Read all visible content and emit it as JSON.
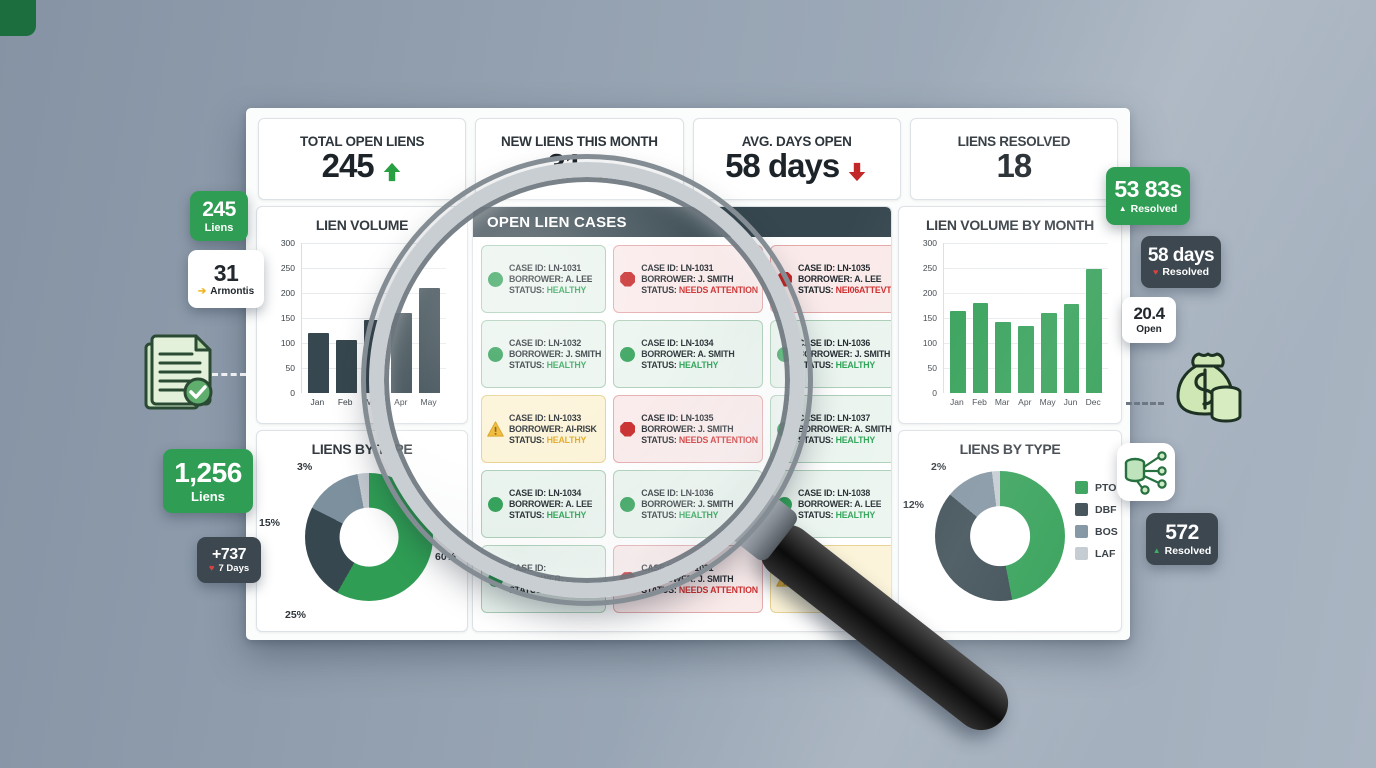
{
  "kpis": [
    {
      "label": "TOTAL OPEN LIENS",
      "value": "245",
      "trend": "up"
    },
    {
      "label": "NEW LIENS THIS MONTH",
      "value": "31",
      "trend": "right"
    },
    {
      "label": "AVG. DAYS OPEN",
      "value": "58 days",
      "trend": "down"
    },
    {
      "label": "LIENS RESOLVED",
      "value": "18",
      "trend": "none"
    }
  ],
  "trend_colors": {
    "up": "#27a042",
    "right": "#f0b41c",
    "down": "#c22828"
  },
  "panels": {
    "lien_volume": {
      "title": "LIEN VOLUME",
      "type": "bar",
      "bar_color": "#37474f",
      "yticks": [
        300,
        250,
        200,
        150,
        100,
        50,
        0
      ],
      "ymax": 300,
      "categories": [
        "Jan",
        "Feb",
        "Mar",
        "Apr",
        "May"
      ],
      "values": [
        120,
        105,
        145,
        160,
        210
      ]
    },
    "lien_volume_by_month": {
      "title": "LIEN VOLUME BY MONTH",
      "type": "bar",
      "bar_color": "#2f9e54",
      "yticks": [
        300,
        250,
        200,
        150,
        100,
        50,
        0
      ],
      "ymax": 300,
      "categories": [
        "Jan",
        "Feb",
        "Mar",
        "Apr",
        "May",
        "Jun",
        "Dec"
      ],
      "values": [
        163,
        180,
        142,
        133,
        160,
        178,
        247
      ]
    },
    "liens_by_type_left": {
      "title": "LIENS BY TYPE",
      "type": "donut",
      "slices": [
        {
          "label": "60%",
          "value": 60,
          "color": "#2f9e54"
        },
        {
          "label": "25%",
          "value": 25,
          "color": "#37474f"
        },
        {
          "label": "15%",
          "value": 15,
          "color": "#7d909e"
        },
        {
          "label": "3%",
          "value": 3,
          "color": "#c2c9cf"
        }
      ]
    },
    "liens_by_type_right": {
      "title": "LIENS BY TYPE",
      "type": "donut",
      "slices": [
        {
          "label": "",
          "value": 47,
          "color": "#2f9e54",
          "name": "PTO"
        },
        {
          "label": "",
          "value": 39,
          "color": "#37474f",
          "name": "DBF"
        },
        {
          "label": "12%",
          "value": 12,
          "color": "#7d909e",
          "name": "BOS"
        },
        {
          "label": "2%",
          "value": 2,
          "color": "#c2c9cf",
          "name": "LAF"
        }
      ],
      "legend": [
        "PTO",
        "DBF",
        "BOS",
        "LAF"
      ]
    }
  },
  "cases": {
    "header": "OPEN LIEN CASES",
    "labels": {
      "case": "CASE ID:",
      "borrower": "BORROWER:",
      "status": "STATUS:"
    },
    "cards": [
      {
        "id": "LN-1031",
        "borrower": "A. LEE",
        "status": "HEALTHY",
        "kind": "healthy"
      },
      {
        "id": "LN-1031",
        "borrower": "J. SMITH",
        "status": "NEEDS ATTENTION",
        "kind": "attention"
      },
      {
        "id": "LN-1035",
        "borrower": "A. LEE",
        "status": "NEI06ATTEVTION",
        "kind": "attention"
      },
      {
        "id": "LN-1032",
        "borrower": "J. SMITH",
        "status": "HEALTHY",
        "kind": "healthy"
      },
      {
        "id": "LN-1034",
        "borrower": "A. SMITH",
        "status": "HEALTHY",
        "kind": "healthy"
      },
      {
        "id": "LN-1036",
        "borrower": "J. SMITH",
        "status": "HEALTHY",
        "kind": "healthy"
      },
      {
        "id": "LN-1033",
        "borrower": "AI-RISK",
        "status": "HEALTHY",
        "kind": "warning"
      },
      {
        "id": "LN-1035",
        "borrower": "J. SMITH",
        "status": "NEEDS ATTENTION",
        "kind": "attention"
      },
      {
        "id": "LN-1037",
        "borrower": "A. SMITH",
        "status": "HEALTHY",
        "kind": "healthy"
      },
      {
        "id": "LN-1034",
        "borrower": "A. LEE",
        "status": "HEALTHY",
        "kind": "healthy"
      },
      {
        "id": "LN-1036",
        "borrower": "J. SMITH",
        "status": "HEALTHY",
        "kind": "healthy"
      },
      {
        "id": "LN-1038",
        "borrower": "A. LEE",
        "status": "HEALTHY",
        "kind": "healthy"
      },
      {
        "id": "",
        "borrower": "",
        "status": "MEALTHY",
        "kind": "healthy"
      },
      {
        "id": "LN-1031",
        "borrower": "J. SMITH",
        "status": "NEEDS ATTENTION",
        "kind": "attention"
      },
      {
        "id": "",
        "borrower": "",
        "status": "HEALTHY",
        "kind": "warning"
      }
    ]
  },
  "badges_left": [
    {
      "value": "245",
      "label": "Liens",
      "style": "green",
      "icon": "none"
    },
    {
      "value": "31",
      "label": "Armontis",
      "style": "white",
      "icon": "arrow-right"
    },
    {
      "value": "1,256",
      "label": "Liens",
      "style": "green",
      "icon": "none"
    },
    {
      "value": "+737",
      "label": "7 Days",
      "style": "dark",
      "icon": "heart"
    }
  ],
  "badges_right": [
    {
      "value": "53 83s",
      "label": "Resolved",
      "style": "green",
      "icon": "up-triangle-white"
    },
    {
      "value": "58 days",
      "label": "Resolved",
      "style": "dark",
      "icon": "heart"
    },
    {
      "value": "20.4",
      "label": "Open",
      "style": "white",
      "icon": "none"
    },
    {
      "value": "572",
      "label": "Resolved",
      "style": "dark",
      "icon": "up-triangle-green"
    }
  ],
  "icons": {
    "document_check": "document-check-icon",
    "money_bag": "money-bag-icon",
    "database_network": "database-network-icon",
    "magnifier": "magnifier"
  },
  "colors": {
    "green": "#2f9e54",
    "navy": "#37474f",
    "slate": "#7d909e",
    "light_gray": "#c2c9cf",
    "red": "#c62525",
    "amber": "#f0b41c"
  }
}
